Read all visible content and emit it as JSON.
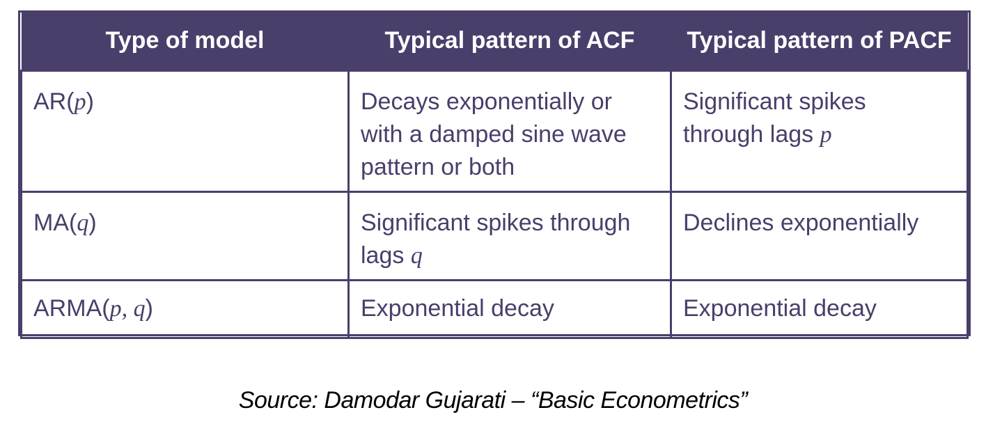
{
  "table": {
    "headers": [
      "Type of model",
      "Typical pattern of ACF",
      "Typical pattern of PACF"
    ],
    "rows": [
      {
        "model_prefix": "AR(",
        "model_var": "p",
        "model_suffix": ")",
        "acf_lines": [
          "Decays exponentially or",
          "with a damped sine wave",
          "pattern or both"
        ],
        "pacf_lines": [
          "Significant spikes"
        ],
        "pacf_tail_text": "through lags ",
        "pacf_tail_var": "p"
      },
      {
        "model_prefix": "MA(",
        "model_var": "q",
        "model_suffix": ")",
        "acf_lines": [
          "Significant spikes through"
        ],
        "acf_tail_text": "lags ",
        "acf_tail_var": "q",
        "pacf_lines": [
          "Declines exponentially"
        ]
      },
      {
        "model_prefix": "ARMA(",
        "model_var": "p, q",
        "model_suffix": ")",
        "acf_lines": [
          "Exponential decay"
        ],
        "pacf_lines": [
          "Exponential decay"
        ]
      }
    ]
  },
  "caption": "Source: Damodar Gujarati – “Basic Econometrics”",
  "colors": {
    "header_bg": "#4a3e6b",
    "header_text": "#ffffff",
    "body_text": "#4a3e6b",
    "border": "#4a3e6b"
  }
}
